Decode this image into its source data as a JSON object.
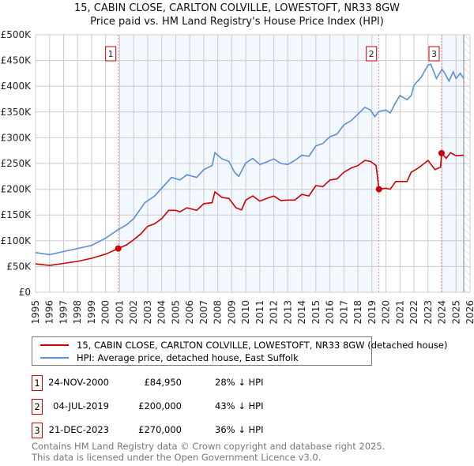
{
  "chart_data": {
    "type": "line",
    "title": "15, CABIN CLOSE, CARLTON COLVILLE, LOWESTOFT, NR33 8GW",
    "subtitle": "Price paid vs. HM Land Registry's House Price Index (HPI)",
    "xlim": [
      1995,
      2026
    ],
    "ylim": [
      0,
      500000
    ],
    "x_ticks": [
      "1995",
      "1996",
      "1997",
      "1998",
      "1999",
      "2000",
      "2001",
      "2002",
      "2003",
      "2004",
      "2005",
      "2006",
      "2007",
      "2008",
      "2009",
      "2010",
      "2011",
      "2012",
      "2013",
      "2014",
      "2015",
      "2016",
      "2017",
      "2018",
      "2019",
      "2020",
      "2021",
      "2022",
      "2023",
      "2024",
      "2025",
      "2026"
    ],
    "y_ticks": [
      {
        "v": 0,
        "label": "£0"
      },
      {
        "v": 50000,
        "label": "£50K"
      },
      {
        "v": 100000,
        "label": "£100K"
      },
      {
        "v": 150000,
        "label": "£150K"
      },
      {
        "v": 200000,
        "label": "£200K"
      },
      {
        "v": 250000,
        "label": "£250K"
      },
      {
        "v": 300000,
        "label": "£300K"
      },
      {
        "v": 350000,
        "label": "£350K"
      },
      {
        "v": 400000,
        "label": "£400K"
      },
      {
        "v": 450000,
        "label": "£450K"
      },
      {
        "v": 500000,
        "label": "£500K"
      }
    ],
    "grid": true,
    "data_end": 2025.55,
    "series": [
      {
        "name": "15, CABIN CLOSE, CARLTON COLVILLE, LOWESTOFT, NR33 8GW (detached house)",
        "color": "#cc0000",
        "x": [
          1995,
          1996,
          1997,
          1998,
          1999,
          2000,
          2000.9,
          2001.5,
          2002,
          2002.5,
          2003,
          2003.5,
          2004,
          2004.5,
          2005,
          2005.3,
          2005.8,
          2006.5,
          2007,
          2007.6,
          2007.8,
          2008.3,
          2008.8,
          2009.3,
          2009.7,
          2010,
          2010.5,
          2011,
          2011.5,
          2012,
          2012.5,
          2013,
          2013.5,
          2014,
          2014.5,
          2015,
          2015.5,
          2016,
          2016.5,
          2017,
          2017.5,
          2018,
          2018.5,
          2018.9,
          2019.3,
          2019.5,
          2020,
          2020.3,
          2020.7,
          2021,
          2021.5,
          2021.8,
          2022.3,
          2023,
          2023.5,
          2023.9,
          2023.97,
          2024.3,
          2024.6,
          2025,
          2025.55
        ],
        "y": [
          55,
          52,
          56,
          60,
          66,
          74,
          85,
          92,
          102,
          113,
          128,
          133,
          143,
          159,
          159,
          156,
          164,
          159,
          172,
          174,
          195,
          184,
          182,
          164,
          160,
          179,
          187,
          177,
          182,
          187,
          178,
          179,
          179,
          190,
          187,
          207,
          205,
          218,
          220,
          233,
          241,
          246,
          256,
          254,
          246,
          200,
          202,
          200,
          215,
          215,
          215,
          233,
          241,
          256,
          238,
          243,
          270,
          260,
          271,
          265,
          266
        ]
      },
      {
        "name": "HPI: Average price, detached house, East Suffolk",
        "color": "#5b8fd6",
        "x": [
          1995,
          1996,
          1997,
          1998,
          1999,
          2000,
          2000.8,
          2001.5,
          2002,
          2002.8,
          2003.5,
          2004,
          2004.7,
          2005.3,
          2005.8,
          2006.5,
          2007,
          2007.6,
          2007.8,
          2008.3,
          2008.8,
          2009.2,
          2009.5,
          2010,
          2010.5,
          2011,
          2011.5,
          2012,
          2012.5,
          2013,
          2013.5,
          2014,
          2014.5,
          2015,
          2015.5,
          2016,
          2016.5,
          2017,
          2017.5,
          2018,
          2018.5,
          2018.9,
          2019.2,
          2019.5,
          2020,
          2020.3,
          2020.7,
          2021,
          2021.5,
          2021.8,
          2022,
          2022.5,
          2023,
          2023.2,
          2023.6,
          2024,
          2024.2,
          2024.5,
          2024.8,
          2025,
          2025.3,
          2025.55
        ],
        "y": [
          77,
          73,
          79,
          85,
          91,
          105,
          120,
          131,
          143,
          174,
          187,
          202,
          223,
          218,
          228,
          223,
          238,
          246,
          271,
          259,
          254,
          233,
          225,
          251,
          260,
          248,
          253,
          259,
          250,
          248,
          256,
          266,
          264,
          284,
          289,
          302,
          307,
          325,
          333,
          346,
          359,
          354,
          341,
          351,
          354,
          348,
          369,
          382,
          374,
          382,
          402,
          417,
          441,
          443,
          415,
          433,
          425,
          410,
          428,
          415,
          425,
          415
        ],
        "y_unit": "thousand GBP"
      }
    ],
    "sales": [
      {
        "n": "1",
        "x": 2000.9,
        "y": 84950,
        "date": "24-NOV-2000",
        "price": "£84,950",
        "hpi": "28% ↓ HPI"
      },
      {
        "n": "2",
        "x": 2019.5,
        "y": 200000,
        "date": "04-JUL-2019",
        "price": "£200,000",
        "hpi": "43% ↓ HPI"
      },
      {
        "n": "3",
        "x": 2023.97,
        "y": 270000,
        "date": "21-DEC-2023",
        "price": "£270,000",
        "hpi": "36% ↓ HPI"
      }
    ]
  },
  "footer": {
    "line1": "Contains HM Land Registry data © Crown copyright and database right 2025.",
    "line2": "This data is licensed under the Open Government Licence v3.0."
  }
}
